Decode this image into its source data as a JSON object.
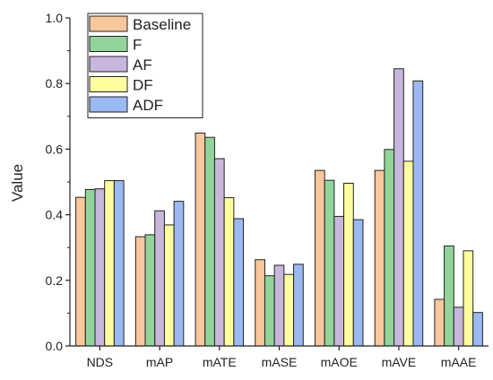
{
  "chart_data": {
    "type": "bar",
    "categories": [
      "NDS",
      "mAP",
      "mATE",
      "mASE",
      "mAOE",
      "mAVE",
      "mAAE"
    ],
    "series": [
      {
        "name": "Baseline",
        "color": "#F9C79E",
        "values": [
          0.453,
          0.333,
          0.649,
          0.263,
          0.535,
          0.535,
          0.142
        ]
      },
      {
        "name": "F",
        "color": "#93D49A",
        "values": [
          0.477,
          0.339,
          0.636,
          0.214,
          0.505,
          0.599,
          0.305
        ]
      },
      {
        "name": "AF",
        "color": "#C9B6DC",
        "values": [
          0.479,
          0.412,
          0.571,
          0.246,
          0.395,
          0.845,
          0.118
        ]
      },
      {
        "name": "DF",
        "color": "#FFFFA0",
        "values": [
          0.504,
          0.369,
          0.452,
          0.218,
          0.496,
          0.563,
          0.29
        ]
      },
      {
        "name": "ADF",
        "color": "#9BB9F2",
        "values": [
          0.504,
          0.441,
          0.388,
          0.249,
          0.385,
          0.808,
          0.102
        ]
      }
    ],
    "xlabel": "",
    "ylabel": "Value",
    "ylim": [
      0,
      1.0
    ],
    "yticks": [
      "0.0",
      "0.2",
      "0.4",
      "0.6",
      "0.8",
      "1.0"
    ],
    "grid": false,
    "legend_position": "top-left"
  }
}
